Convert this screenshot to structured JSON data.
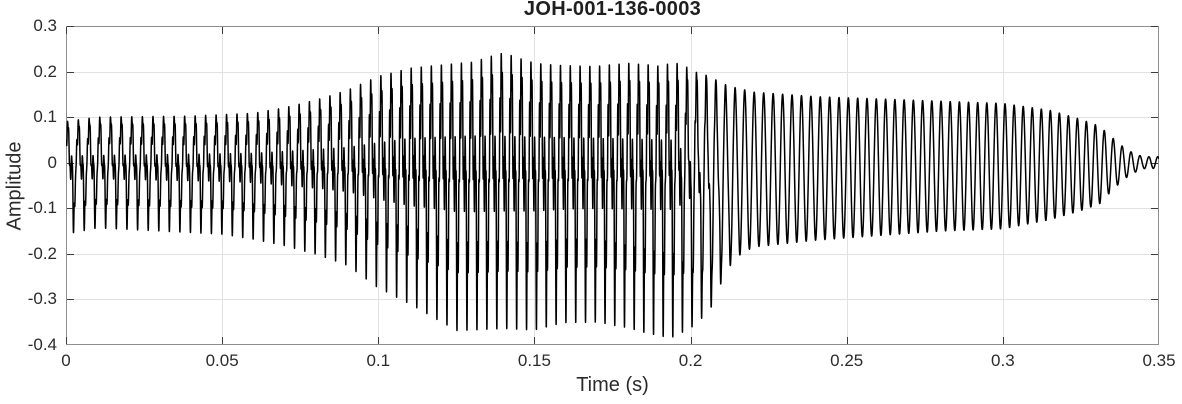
{
  "chart_data": {
    "type": "line",
    "title": "JOH-001-136-0003",
    "xlabel": "Time (s)",
    "ylabel": "Amplitude",
    "xlim": [
      0,
      0.35
    ],
    "ylim": [
      -0.4,
      0.3
    ],
    "xticks": [
      0,
      0.05,
      0.1,
      0.15,
      0.2,
      0.25,
      0.3,
      0.35
    ],
    "xtick_labels": [
      "0",
      "0.05",
      "0.1",
      "0.15",
      "0.2",
      "0.25",
      "0.3",
      "0.35"
    ],
    "yticks": [
      -0.4,
      -0.3,
      -0.2,
      -0.1,
      0,
      0.1,
      0.2,
      0.3
    ],
    "ytick_labels": [
      "-0.4",
      "-0.3",
      "-0.2",
      "-0.1",
      "0",
      "0.1",
      "0.2",
      "0.3"
    ],
    "grid": true,
    "legend": null,
    "series_description": "single black audio waveform (voiced speech token), dense harmonic-rich oscillation 0-0.21 s swelling to peaks +0.22 / troughs -0.34, then smooth decaying ~350 Hz sinusoid fading to ~0 by 0.345 s",
    "colors": {
      "line": "#000000",
      "box": "#8e8e8e",
      "grid": "#e2e2e2",
      "tick_marks": "#3c3c3c",
      "text": "#262626",
      "background": "#ffffff"
    },
    "signal": {
      "f0_hz_start": 290,
      "f0_hz_end": 352,
      "envelope_upper": [
        [
          0,
          0.09
        ],
        [
          0.01,
          0.1
        ],
        [
          0.04,
          0.1
        ],
        [
          0.06,
          0.105
        ],
        [
          0.07,
          0.115
        ],
        [
          0.08,
          0.13
        ],
        [
          0.09,
          0.15
        ],
        [
          0.1,
          0.175
        ],
        [
          0.11,
          0.185
        ],
        [
          0.12,
          0.19
        ],
        [
          0.13,
          0.195
        ],
        [
          0.14,
          0.22
        ],
        [
          0.15,
          0.195
        ],
        [
          0.16,
          0.19
        ],
        [
          0.17,
          0.19
        ],
        [
          0.18,
          0.2
        ],
        [
          0.19,
          0.195
        ],
        [
          0.198,
          0.21
        ],
        [
          0.205,
          0.2
        ],
        [
          0.212,
          0.17
        ],
        [
          0.22,
          0.155
        ],
        [
          0.24,
          0.145
        ],
        [
          0.26,
          0.14
        ],
        [
          0.28,
          0.135
        ],
        [
          0.3,
          0.13
        ],
        [
          0.315,
          0.115
        ],
        [
          0.325,
          0.095
        ],
        [
          0.331,
          0.08
        ],
        [
          0.335,
          0.055
        ],
        [
          0.339,
          0.032
        ],
        [
          0.342,
          0.02
        ],
        [
          0.345,
          0.013
        ],
        [
          0.35,
          0.013
        ]
      ],
      "envelope_lower": [
        [
          0,
          -0.145
        ],
        [
          0.01,
          -0.13
        ],
        [
          0.03,
          -0.135
        ],
        [
          0.05,
          -0.14
        ],
        [
          0.06,
          -0.15
        ],
        [
          0.07,
          -0.16
        ],
        [
          0.08,
          -0.175
        ],
        [
          0.09,
          -0.195
        ],
        [
          0.1,
          -0.235
        ],
        [
          0.11,
          -0.26
        ],
        [
          0.121,
          -0.3
        ],
        [
          0.125,
          -0.315
        ],
        [
          0.14,
          -0.31
        ],
        [
          0.15,
          -0.315
        ],
        [
          0.16,
          -0.3
        ],
        [
          0.17,
          -0.3
        ],
        [
          0.18,
          -0.315
        ],
        [
          0.19,
          -0.335
        ],
        [
          0.2,
          -0.34
        ],
        [
          0.206,
          -0.32
        ],
        [
          0.21,
          -0.26
        ],
        [
          0.214,
          -0.21
        ],
        [
          0.22,
          -0.185
        ],
        [
          0.24,
          -0.17
        ],
        [
          0.26,
          -0.16
        ],
        [
          0.28,
          -0.15
        ],
        [
          0.3,
          -0.145
        ],
        [
          0.315,
          -0.125
        ],
        [
          0.325,
          -0.105
        ],
        [
          0.331,
          -0.09
        ],
        [
          0.335,
          -0.06
        ],
        [
          0.339,
          -0.035
        ],
        [
          0.342,
          -0.022
        ],
        [
          0.345,
          -0.013
        ],
        [
          0.35,
          -0.012
        ]
      ],
      "sine_mix": [
        [
          0,
          0
        ],
        [
          0.195,
          0
        ],
        [
          0.205,
          0.35
        ],
        [
          0.212,
          0.8
        ],
        [
          0.218,
          1
        ],
        [
          0.35,
          1
        ]
      ],
      "ripple_band": [
        [
          0,
          0.012
        ],
        [
          0.06,
          0.018
        ],
        [
          0.09,
          0.03
        ],
        [
          0.11,
          0.05
        ],
        [
          0.13,
          0.055
        ],
        [
          0.17,
          0.05
        ],
        [
          0.195,
          0.045
        ],
        [
          0.205,
          0.025
        ],
        [
          0.213,
          0.006
        ],
        [
          0.23,
          0.002
        ],
        [
          0.3,
          0.001
        ],
        [
          0.35,
          0
        ]
      ]
    }
  }
}
